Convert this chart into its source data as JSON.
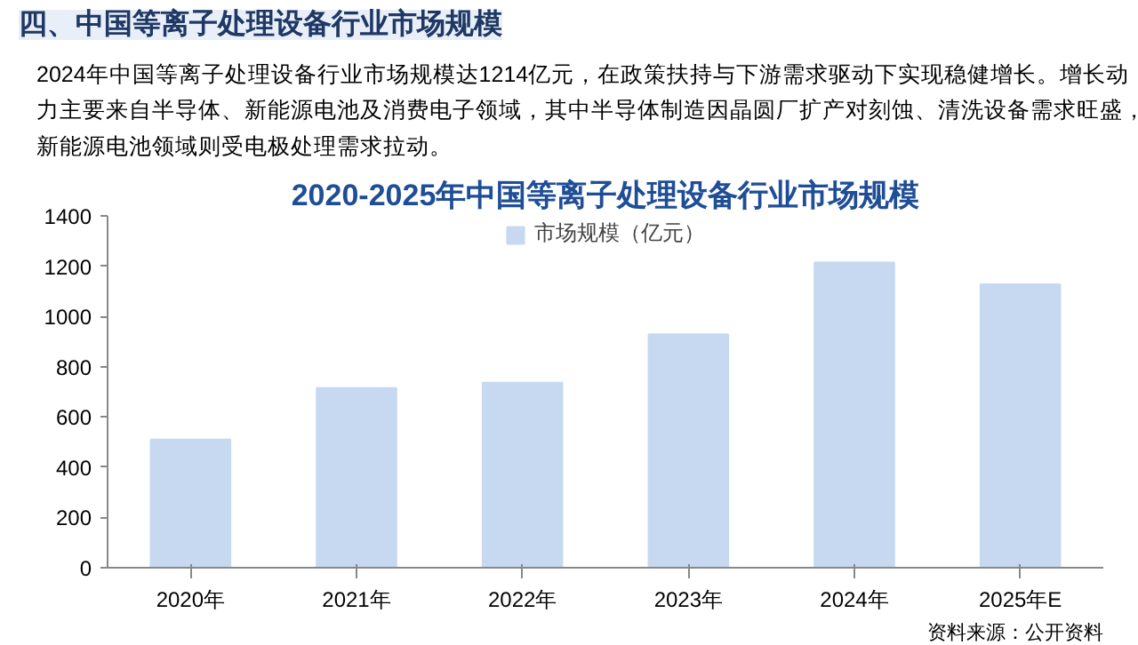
{
  "chart_data": {
    "type": "bar",
    "title": "2020-2025年中国等离子处理设备行业市场规模",
    "categories": [
      "2020年",
      "2021年",
      "2022年",
      "2023年",
      "2024年",
      "2025年E"
    ],
    "series": [
      {
        "name": "市场规模（亿元）",
        "color": "#c6d9f1",
        "values": [
          510,
          715,
          736,
          929,
          1214,
          1128
        ]
      }
    ],
    "ylim": [
      0,
      1400
    ],
    "yticks": [
      0,
      200,
      400,
      600,
      800,
      1000,
      1200,
      1400
    ],
    "legend": "top",
    "grid": false,
    "annotations": [
      "四、中国等离子处理设备行业市场规模",
      "2024年中国等离子处理设备行业市场规模达1214亿元，在政策扶持与下游需求驱动下实现稳健增长。增长动力主要来自半导体、新能源电池及消费电子领域，其中半导体制造因晶圆厂扩产对刻蚀、清洗设备需求旺盛，新能源电池领域则受电极处理需求拉动。",
      "资料来源：公开资料"
    ]
  }
}
